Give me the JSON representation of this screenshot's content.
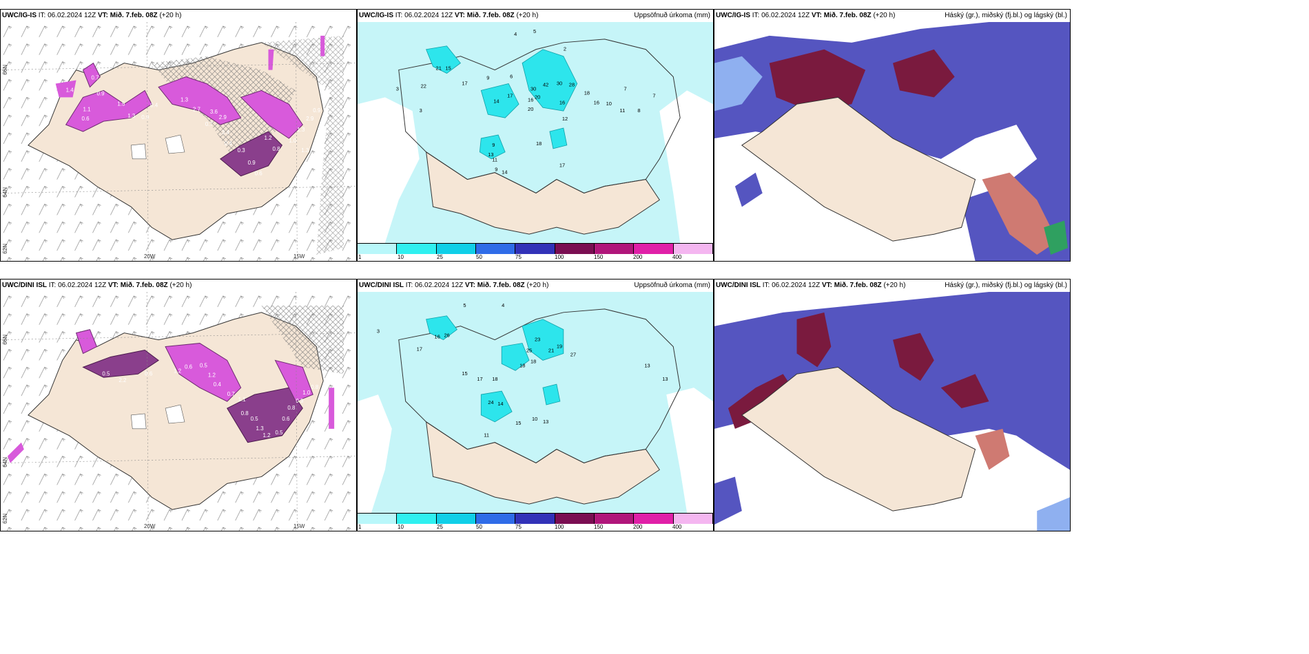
{
  "rows": [
    {
      "model": "UWC/IG-IS",
      "it_label": "IT: 06.02.2024 12Z",
      "vt_label": "VT: Mið. 7.feb. 08Z",
      "lead": "(+20 h)",
      "panel1": {
        "lat_labels": [
          "66N",
          "64N",
          "62N"
        ],
        "lon_labels": [
          "20W",
          "15W"
        ],
        "values": [
          "1.4",
          "0.7",
          "0.9",
          "1.1",
          "0.6",
          "1.5",
          "1.3",
          "0.4",
          "0.9",
          "1.3",
          "2.7",
          "3.6",
          "0.7",
          "2.9",
          "3.4",
          "0.4",
          "0.3",
          "0.9",
          "0.6",
          "1.2",
          "0.8",
          "1.0",
          "1.3",
          "2.9",
          "0.9",
          "1.3"
        ]
      },
      "panel2": {
        "right_title": "Uppsöfnuð úrkoma (mm)",
        "values": [
          "3",
          "4",
          "5",
          "2",
          "3",
          "21",
          "15",
          "22",
          "17",
          "9",
          "6",
          "30",
          "42",
          "30",
          "28",
          "14",
          "17",
          "16",
          "20",
          "20",
          "16",
          "12",
          "9",
          "13",
          "11",
          "18",
          "9",
          "14",
          "17",
          "18",
          "16",
          "10",
          "7",
          "11",
          "8",
          "7"
        ]
      },
      "panel3": {
        "right_title": "Háský (gr.), miðský (fj.bl.) og lágský (bl.)"
      }
    },
    {
      "model": "UWC/DINI ISL",
      "it_label": "IT: 06.02.2024 12Z",
      "vt_label": "VT: Mið. 7.feb. 08Z",
      "lead": "(+20 h)",
      "panel1": {
        "lat_labels": [
          "66N",
          "64N",
          "62N"
        ],
        "lon_labels": [
          "20W",
          "15W"
        ],
        "values": [
          "1.1",
          "0.5",
          "2.2",
          "0.6",
          "1.2",
          "0.6",
          "0.5",
          "1.2",
          "0.4",
          "0.7",
          "1.1",
          "0.8",
          "0.5",
          "1.3",
          "1.2",
          "0.5",
          "0.6",
          "0.8",
          "0.9",
          "1.0",
          "0.8",
          "0.4"
        ]
      },
      "panel2": {
        "right_title": "Uppsöfnuð úrkoma (mm)",
        "values": [
          "3",
          "5",
          "4",
          "16",
          "26",
          "17",
          "15",
          "17",
          "18",
          "25",
          "23",
          "19",
          "27",
          "21",
          "18",
          "18",
          "13",
          "24",
          "14",
          "15",
          "10",
          "13",
          "11",
          "13"
        ]
      },
      "panel3": {
        "right_title": "Háský (gr.), miðský (fj.bl.) og lágský (bl.)"
      }
    }
  ],
  "legend": {
    "ticks": [
      "1",
      "10",
      "25",
      "50",
      "75",
      "100",
      "150",
      "200",
      "400"
    ],
    "colors": [
      "#b9f7fa",
      "#2ff0f0",
      "#10cfe8",
      "#2f6ce8",
      "#3232b8",
      "#7a0e52",
      "#b0167a",
      "#e020a8",
      "#f4b6f0"
    ]
  },
  "colors": {
    "land": "#f5e6d6",
    "sea_precip": "#c6f5f8",
    "heavy_precip": "#2de5ec",
    "magenta": "#d85adb",
    "cloud_blue": "#5555c0",
    "cloud_dark": "#7a1a3e",
    "cloud_light": "#8fb0f0"
  }
}
